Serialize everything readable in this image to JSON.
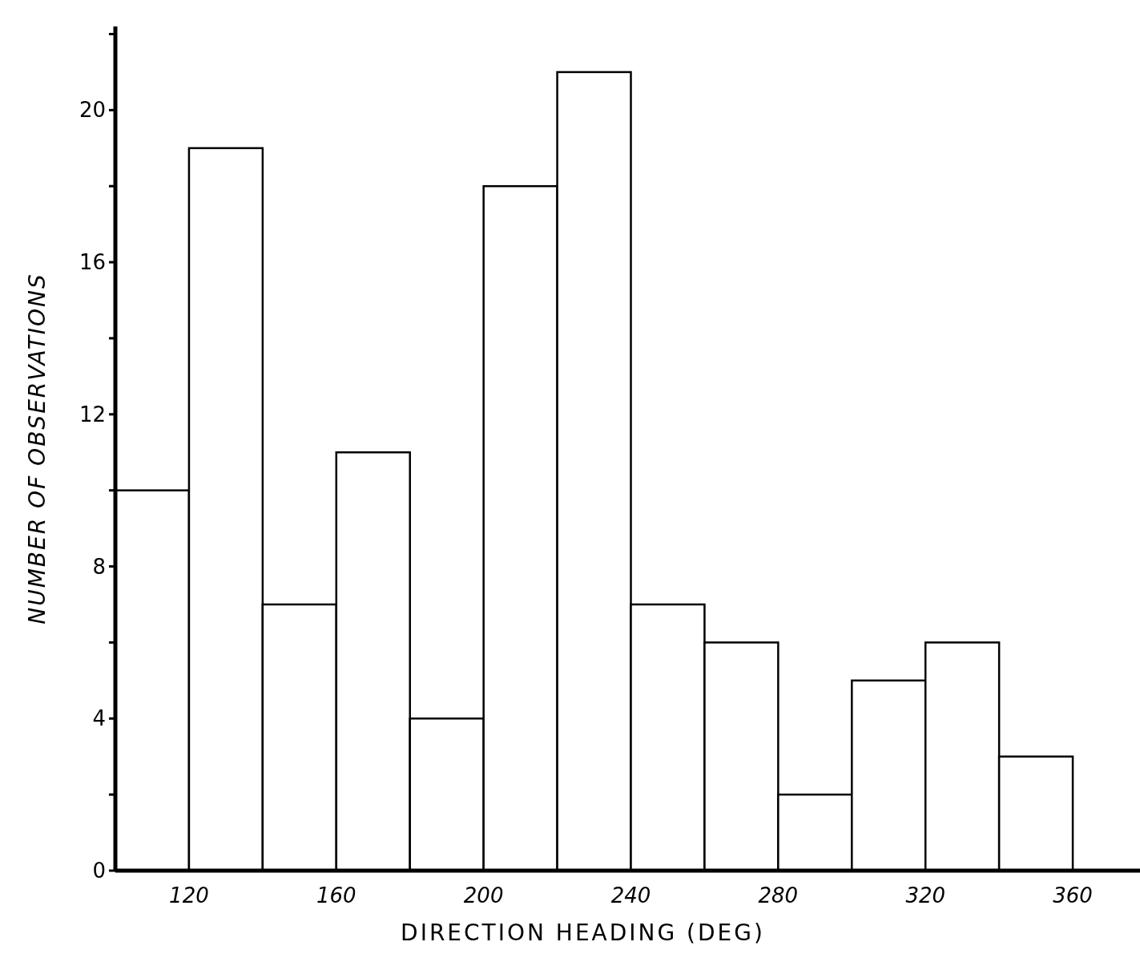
{
  "chart_data": {
    "type": "histogram",
    "xlabel": "DIRECTION HEADING (DEG)",
    "ylabel": "NUMBER OF OBSERVATIONS",
    "bins": [
      100,
      120,
      140,
      160,
      180,
      200,
      220,
      240,
      260,
      280,
      300,
      320,
      340,
      360
    ],
    "values": [
      10,
      19,
      7,
      11,
      4,
      18,
      21,
      7,
      6,
      2,
      5,
      6,
      3
    ],
    "color": "#ffffff",
    "xlim": [
      100,
      380
    ],
    "xticks": [
      120,
      160,
      200,
      240,
      280,
      320,
      360
    ],
    "ylim": [
      0,
      22.2
    ],
    "yticks": [
      0,
      {
        "value": 2,
        "label": null
      },
      4,
      {
        "value": 6,
        "label": null
      },
      8,
      {
        "value": 10,
        "label": null
      },
      12,
      {
        "value": 14,
        "label": null
      },
      16,
      {
        "value": 18,
        "label": null
      },
      20,
      {
        "value": 22,
        "label": null
      }
    ],
    "grid": false
  }
}
